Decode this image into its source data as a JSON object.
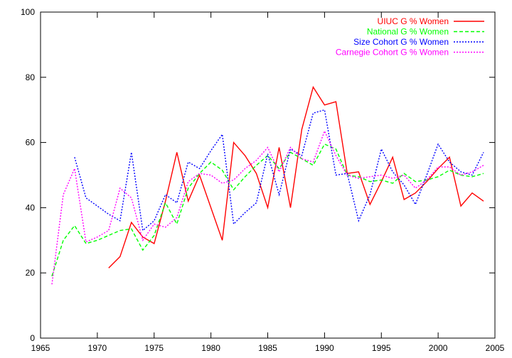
{
  "chart_data": {
    "type": "line",
    "title": "",
    "xlabel": "",
    "ylabel": "",
    "xlim": [
      1965,
      2005
    ],
    "ylim": [
      0,
      100
    ],
    "xticks": [
      1965,
      1970,
      1975,
      1980,
      1985,
      1990,
      1995,
      2000,
      2005
    ],
    "yticks": [
      0,
      20,
      40,
      60,
      80,
      100
    ],
    "grid": false,
    "legend_position": "top-right",
    "series": [
      {
        "name": "UIUC G % Women",
        "color": "#ff0000",
        "dash": "solid",
        "points": [
          [
            1971,
            21.5
          ],
          [
            1972,
            25
          ],
          [
            1973,
            35.5
          ],
          [
            1974,
            31
          ],
          [
            1975,
            29
          ],
          [
            1976,
            42
          ],
          [
            1977,
            57
          ],
          [
            1978,
            42
          ],
          [
            1979,
            50
          ],
          [
            1980,
            40
          ],
          [
            1981,
            30
          ],
          [
            1982,
            60
          ],
          [
            1983,
            56
          ],
          [
            1984,
            50.5
          ],
          [
            1985,
            40
          ],
          [
            1986,
            58.5
          ],
          [
            1987,
            40
          ],
          [
            1988,
            64
          ],
          [
            1989,
            77
          ],
          [
            1990,
            71.5
          ],
          [
            1991,
            72.5
          ],
          [
            1992,
            50.5
          ],
          [
            1993,
            51
          ],
          [
            1994,
            41
          ],
          [
            1995,
            48
          ],
          [
            1996,
            55.5
          ],
          [
            1997,
            42.5
          ],
          [
            1998,
            44.5
          ],
          [
            1999,
            48
          ],
          [
            2000,
            52
          ],
          [
            2001,
            55.5
          ],
          [
            2002,
            40.5
          ],
          [
            2003,
            44.5
          ],
          [
            2004,
            42
          ]
        ]
      },
      {
        "name": "National G % Women",
        "color": "#00ff00",
        "dash": "dashed",
        "points": [
          [
            1966,
            19
          ],
          [
            1967,
            30
          ],
          [
            1968,
            34.5
          ],
          [
            1969,
            29
          ],
          [
            1970,
            30
          ],
          [
            1971,
            31.5
          ],
          [
            1972,
            33
          ],
          [
            1973,
            33.5
          ],
          [
            1974,
            27
          ],
          [
            1975,
            31.5
          ],
          [
            1976,
            41.5
          ],
          [
            1977,
            35
          ],
          [
            1978,
            46
          ],
          [
            1979,
            50.5
          ],
          [
            1980,
            54
          ],
          [
            1981,
            51.5
          ],
          [
            1982,
            45.5
          ],
          [
            1983,
            49.5
          ],
          [
            1984,
            53
          ],
          [
            1985,
            56
          ],
          [
            1986,
            52
          ],
          [
            1987,
            57
          ],
          [
            1988,
            55
          ],
          [
            1989,
            53
          ],
          [
            1990,
            59.5
          ],
          [
            1991,
            58
          ],
          [
            1992,
            50
          ],
          [
            1993,
            49.5
          ],
          [
            1994,
            48
          ],
          [
            1995,
            48.5
          ],
          [
            1996,
            47.5
          ],
          [
            1997,
            50.5
          ],
          [
            1998,
            48
          ],
          [
            1999,
            48.5
          ],
          [
            2000,
            49.5
          ],
          [
            2001,
            51.5
          ],
          [
            2002,
            50
          ],
          [
            2003,
            49.5
          ],
          [
            2004,
            50.5
          ]
        ]
      },
      {
        "name": "Size Cohort G % Women",
        "color": "#0000ff",
        "dash": "dotted",
        "points": [
          [
            1968,
            55.5
          ],
          [
            1969,
            43
          ],
          [
            1970,
            40.5
          ],
          [
            1971,
            38
          ],
          [
            1972,
            36
          ],
          [
            1973,
            57
          ],
          [
            1974,
            33
          ],
          [
            1975,
            36
          ],
          [
            1976,
            44
          ],
          [
            1977,
            41.5
          ],
          [
            1978,
            54
          ],
          [
            1979,
            52
          ],
          [
            1980,
            57.5
          ],
          [
            1981,
            62.5
          ],
          [
            1982,
            35
          ],
          [
            1983,
            38.5
          ],
          [
            1984,
            41.5
          ],
          [
            1985,
            56.5
          ],
          [
            1986,
            44
          ],
          [
            1987,
            58
          ],
          [
            1988,
            56
          ],
          [
            1989,
            69
          ],
          [
            1990,
            70
          ],
          [
            1991,
            50
          ],
          [
            1992,
            50.5
          ],
          [
            1993,
            36
          ],
          [
            1994,
            44
          ],
          [
            1995,
            58
          ],
          [
            1996,
            51
          ],
          [
            1997,
            47
          ],
          [
            1998,
            41
          ],
          [
            1999,
            50
          ],
          [
            2000,
            59.5
          ],
          [
            2001,
            54
          ],
          [
            2002,
            51
          ],
          [
            2003,
            50
          ],
          [
            2004,
            57
          ]
        ]
      },
      {
        "name": "Carnegie Cohort G % Women",
        "color": "#ff00ff",
        "dash": "dotted",
        "points": [
          [
            1966,
            16.5
          ],
          [
            1967,
            44
          ],
          [
            1968,
            52
          ],
          [
            1969,
            29.5
          ],
          [
            1970,
            31
          ],
          [
            1971,
            33
          ],
          [
            1972,
            46
          ],
          [
            1973,
            43
          ],
          [
            1974,
            30
          ],
          [
            1975,
            35
          ],
          [
            1976,
            34
          ],
          [
            1977,
            37
          ],
          [
            1978,
            48
          ],
          [
            1979,
            50.5
          ],
          [
            1980,
            50
          ],
          [
            1981,
            47.5
          ],
          [
            1982,
            48.5
          ],
          [
            1983,
            52
          ],
          [
            1984,
            54.5
          ],
          [
            1985,
            58.5
          ],
          [
            1986,
            51
          ],
          [
            1987,
            58.5
          ],
          [
            1988,
            55
          ],
          [
            1989,
            54
          ],
          [
            1990,
            63.5
          ],
          [
            1991,
            56
          ],
          [
            1992,
            50
          ],
          [
            1993,
            49
          ],
          [
            1994,
            49.5
          ],
          [
            1995,
            50
          ],
          [
            1996,
            49
          ],
          [
            1997,
            50
          ],
          [
            1998,
            46
          ],
          [
            1999,
            48.5
          ],
          [
            2000,
            52.5
          ],
          [
            2001,
            52.5
          ],
          [
            2002,
            50
          ],
          [
            2003,
            51
          ],
          [
            2004,
            53
          ]
        ]
      }
    ]
  }
}
